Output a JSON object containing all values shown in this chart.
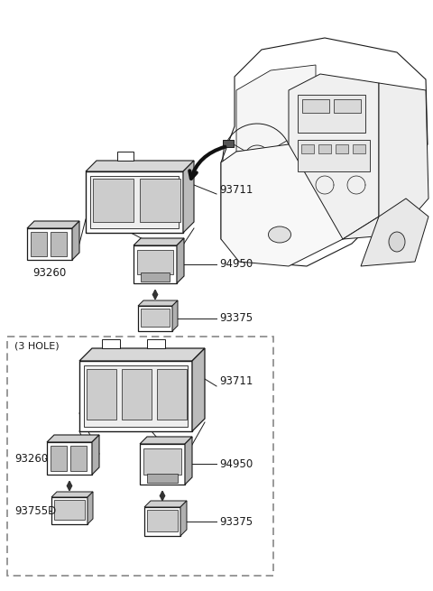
{
  "bg_color": "#ffffff",
  "line_color": "#1a1a1a",
  "fig_width": 4.8,
  "fig_height": 6.55,
  "dpi": 100
}
